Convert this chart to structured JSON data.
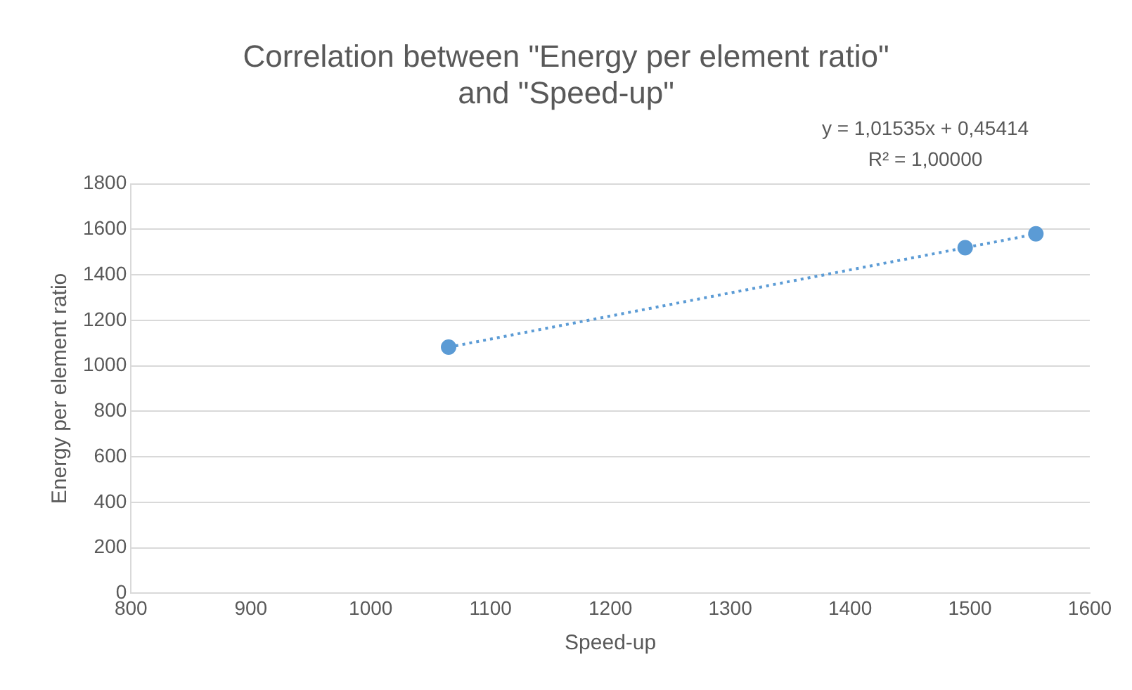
{
  "chart_data": {
    "type": "scatter",
    "title": [
      "Correlation between \"Energy per element ratio\"",
      "and \"Speed-up\""
    ],
    "xlabel": "Speed-up",
    "ylabel": "Energy per element ratio",
    "xlim": [
      800,
      1600
    ],
    "xticks": [
      800,
      900,
      1000,
      1100,
      1200,
      1300,
      1400,
      1500,
      1600
    ],
    "ylim": [
      0,
      1800
    ],
    "yticks": [
      0,
      200,
      400,
      600,
      800,
      1000,
      1200,
      1400,
      1600,
      1800
    ],
    "series": [
      {
        "color": "#5b9bd5",
        "x": [
          1065,
          1496,
          1555
        ],
        "values": [
          1082,
          1519,
          1580
        ],
        "marker": "circle"
      },
      {
        "type": "line",
        "color": "#5b9bd5",
        "x": [
          1065,
          1555
        ],
        "values": [
          1082,
          1579
        ],
        "line_style": "dotted",
        "marker": "none"
      }
    ],
    "annotations": [
      "y = 1,01535x + 0,45414",
      "R² = 1,00000"
    ],
    "grid": "y",
    "legend": false
  }
}
